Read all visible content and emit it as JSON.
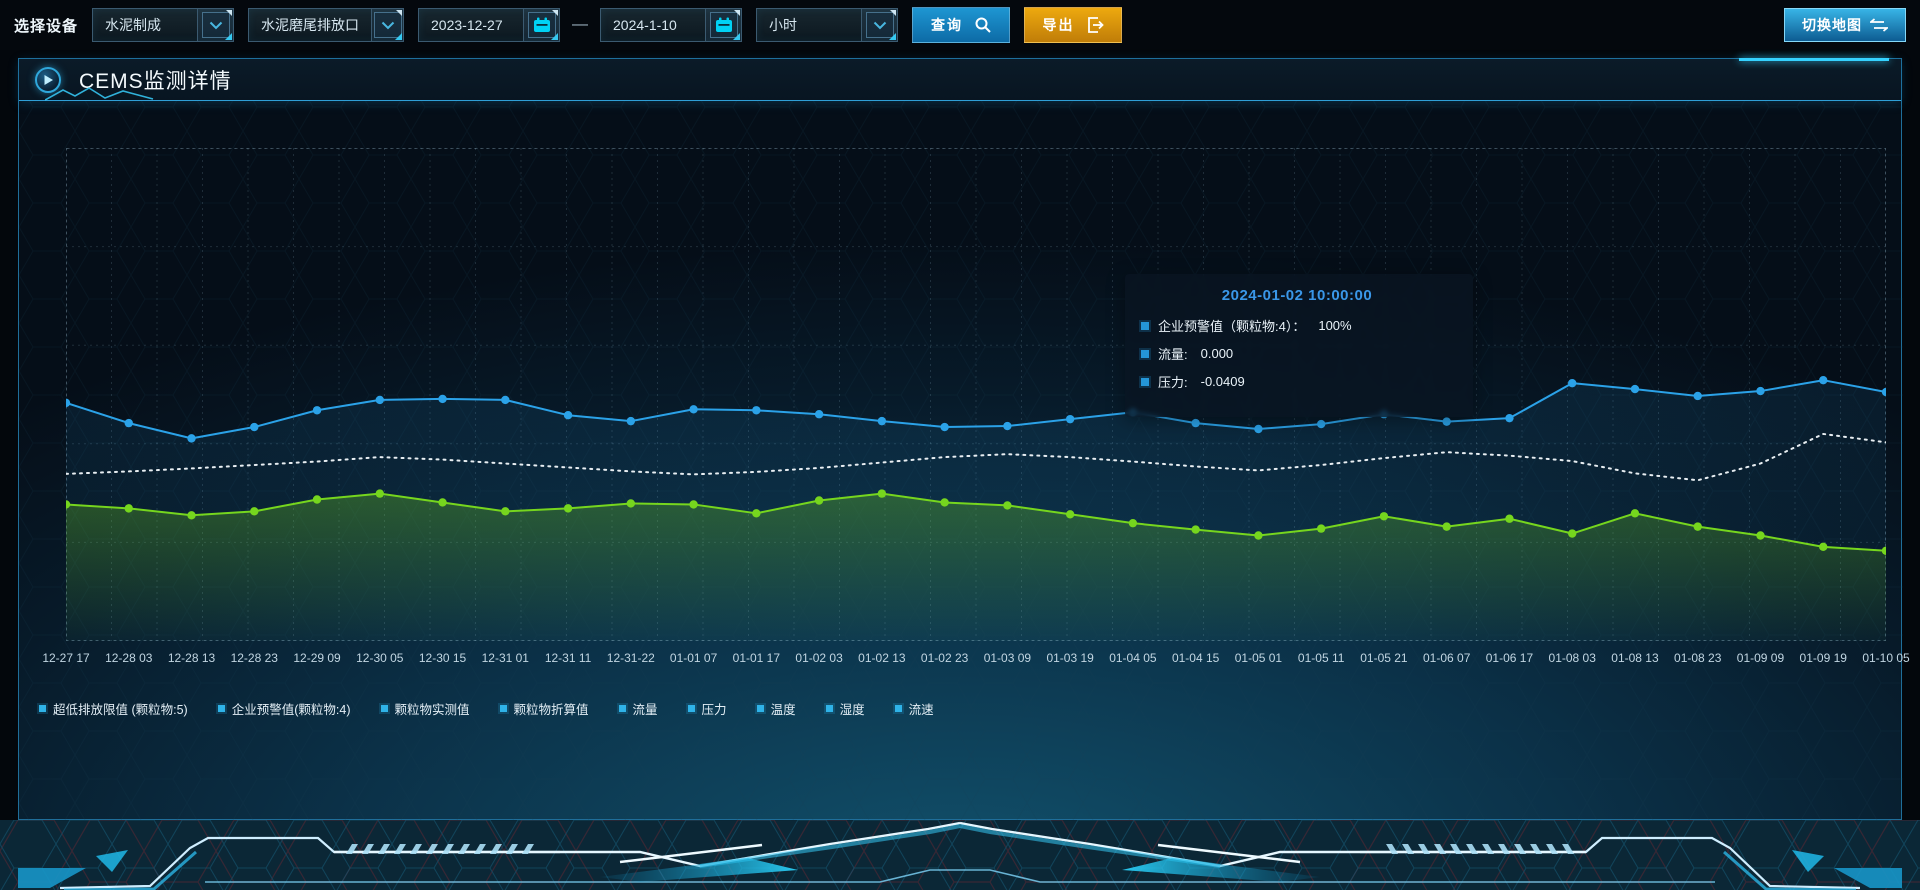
{
  "toolbar": {
    "device_label": "选择设备",
    "device_type": {
      "value": "水泥制成"
    },
    "outlet": {
      "value": "水泥磨尾排放口"
    },
    "date_start": {
      "value": "2023-12-27"
    },
    "date_separator": "—",
    "date_end": {
      "value": "2024-1-10"
    },
    "interval": {
      "value": "小时"
    },
    "query_label": "查询",
    "export_label": "导出",
    "switch_map_label": "切换地图"
  },
  "panel": {
    "title": "CEMS监测详情"
  },
  "tooltip": {
    "title": "2024-01-02 10:00:00",
    "rows": [
      {
        "label": "企业预警值（颗粒物:4）：",
        "value": "100%"
      },
      {
        "label": "流量:",
        "value": "0.000"
      },
      {
        "label": "压力:",
        "value": "-0.0409"
      }
    ]
  },
  "colors": {
    "accent_cyan": "#35d2ff",
    "query_button": "#1286c8",
    "export_button": "#e09b10",
    "series_blue": "#2ba2e8",
    "series_green": "#76d61e",
    "series_white": "#e8eef2",
    "tooltip_title": "#3a97e8"
  },
  "chart_data": {
    "type": "line",
    "title": "",
    "xlabel": "",
    "ylabel": "",
    "ylim": [
      0,
      100
    ],
    "y_axis_visible": false,
    "grid": true,
    "legend_position": "bottom",
    "legend": [
      "超低排放限值 (颗粒物:5)",
      "企业预警值(颗粒物:4)",
      "颗粒物实测值",
      "颗粒物折算值",
      "流量",
      "压力",
      "温度",
      "湿度",
      "流速"
    ],
    "x_labels": [
      "12-27 17",
      "12-28 03",
      "12-28 13",
      "12-28 23",
      "12-29 09",
      "12-30 05",
      "12-30 15",
      "12-31 01",
      "12-31 11",
      "12-31-22",
      "01-01 07",
      "01-01 17",
      "01-02 03",
      "01-02 13",
      "01-02 23",
      "01-03 09",
      "01-03 19",
      "01-04 05",
      "01-04 15",
      "01-05 01",
      "01-05 11",
      "01-05 21",
      "01-06 07",
      "01-06 17",
      "01-08 03",
      "01-08 13",
      "01-08 23",
      "01-09 09",
      "01-09 19",
      "01-10 05"
    ],
    "series": [
      {
        "name": "企业预警值(颗粒物:4)",
        "color": "#2ba2e8",
        "style": "solid",
        "markers": true,
        "area_opacity": 0.1,
        "values": [
          48.3,
          44.2,
          41.1,
          43.4,
          46.8,
          48.9,
          49.1,
          48.9,
          45.8,
          44.6,
          47.0,
          46.8,
          46.0,
          44.6,
          43.4,
          43.6,
          45.0,
          46.4,
          44.2,
          43.0,
          44.0,
          46.0,
          44.5,
          45.2,
          52.3,
          51.1,
          49.7,
          50.7,
          52.9,
          50.5
        ]
      },
      {
        "name": "压力",
        "color": "#e8eef2",
        "style": "dotted",
        "markers": false,
        "area_opacity": 0,
        "values": [
          33.9,
          34.4,
          35.0,
          35.7,
          36.4,
          37.3,
          36.8,
          36.0,
          35.2,
          34.4,
          33.8,
          34.3,
          35.1,
          36.2,
          37.3,
          37.9,
          37.3,
          36.4,
          35.4,
          34.6,
          35.7,
          37.1,
          38.3,
          37.6,
          36.5,
          34.0,
          32.6,
          36.0,
          42.0,
          40.3
        ]
      },
      {
        "name": "流量",
        "color": "#76d61e",
        "style": "solid",
        "markers": true,
        "area_opacity": 0.3,
        "values": [
          27.7,
          26.9,
          25.5,
          26.3,
          28.7,
          29.9,
          28.1,
          26.3,
          26.9,
          27.9,
          27.7,
          25.9,
          28.5,
          29.9,
          28.1,
          27.5,
          25.7,
          23.9,
          22.6,
          21.4,
          22.8,
          25.3,
          23.2,
          24.8,
          21.8,
          25.9,
          23.2,
          21.4,
          19.1,
          18.3
        ]
      }
    ]
  }
}
